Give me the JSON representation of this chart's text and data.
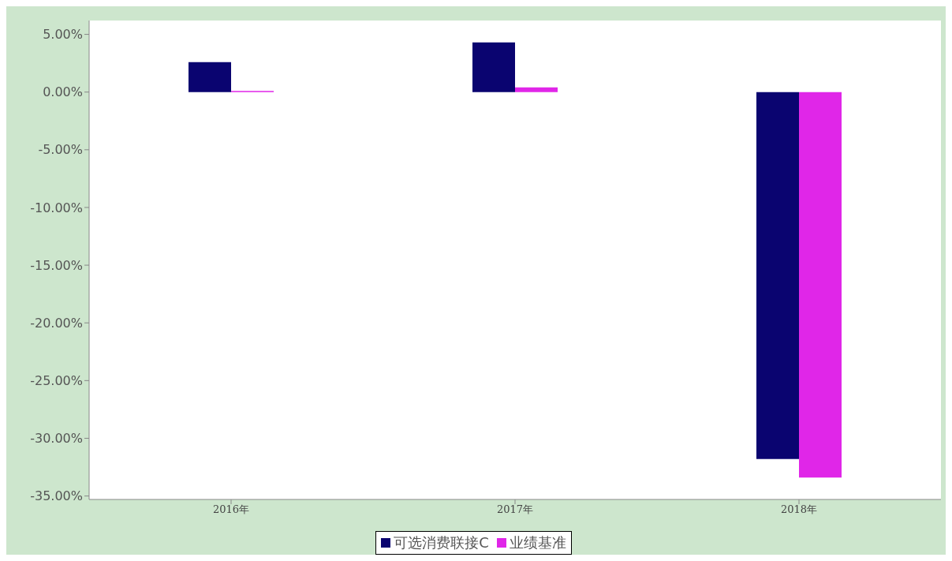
{
  "chart_data": {
    "type": "bar",
    "categories": [
      "2016年",
      "2017年",
      "2018年"
    ],
    "series": [
      {
        "name": "可选消费联接C",
        "color": "#0a0470",
        "values": [
          2.6,
          4.3,
          -31.8
        ]
      },
      {
        "name": "业绩基准",
        "color": "#e026e8",
        "values": [
          0.1,
          0.4,
          -33.4
        ]
      }
    ],
    "ylim": [
      -35.3,
      6.2
    ],
    "yticks": [
      {
        "value": -35,
        "label": "-35.00%"
      },
      {
        "value": -30,
        "label": "-30.00%"
      },
      {
        "value": -25,
        "label": "-25.00%"
      },
      {
        "value": -20,
        "label": "-20.00%"
      },
      {
        "value": -15,
        "label": "-15.00%"
      },
      {
        "value": -10,
        "label": "-10.00%"
      },
      {
        "value": -5,
        "label": "-5.00%"
      },
      {
        "value": 0,
        "label": "0.00%"
      },
      {
        "value": 5,
        "label": "5.00%"
      }
    ],
    "grid": false,
    "legend": "bottom"
  }
}
